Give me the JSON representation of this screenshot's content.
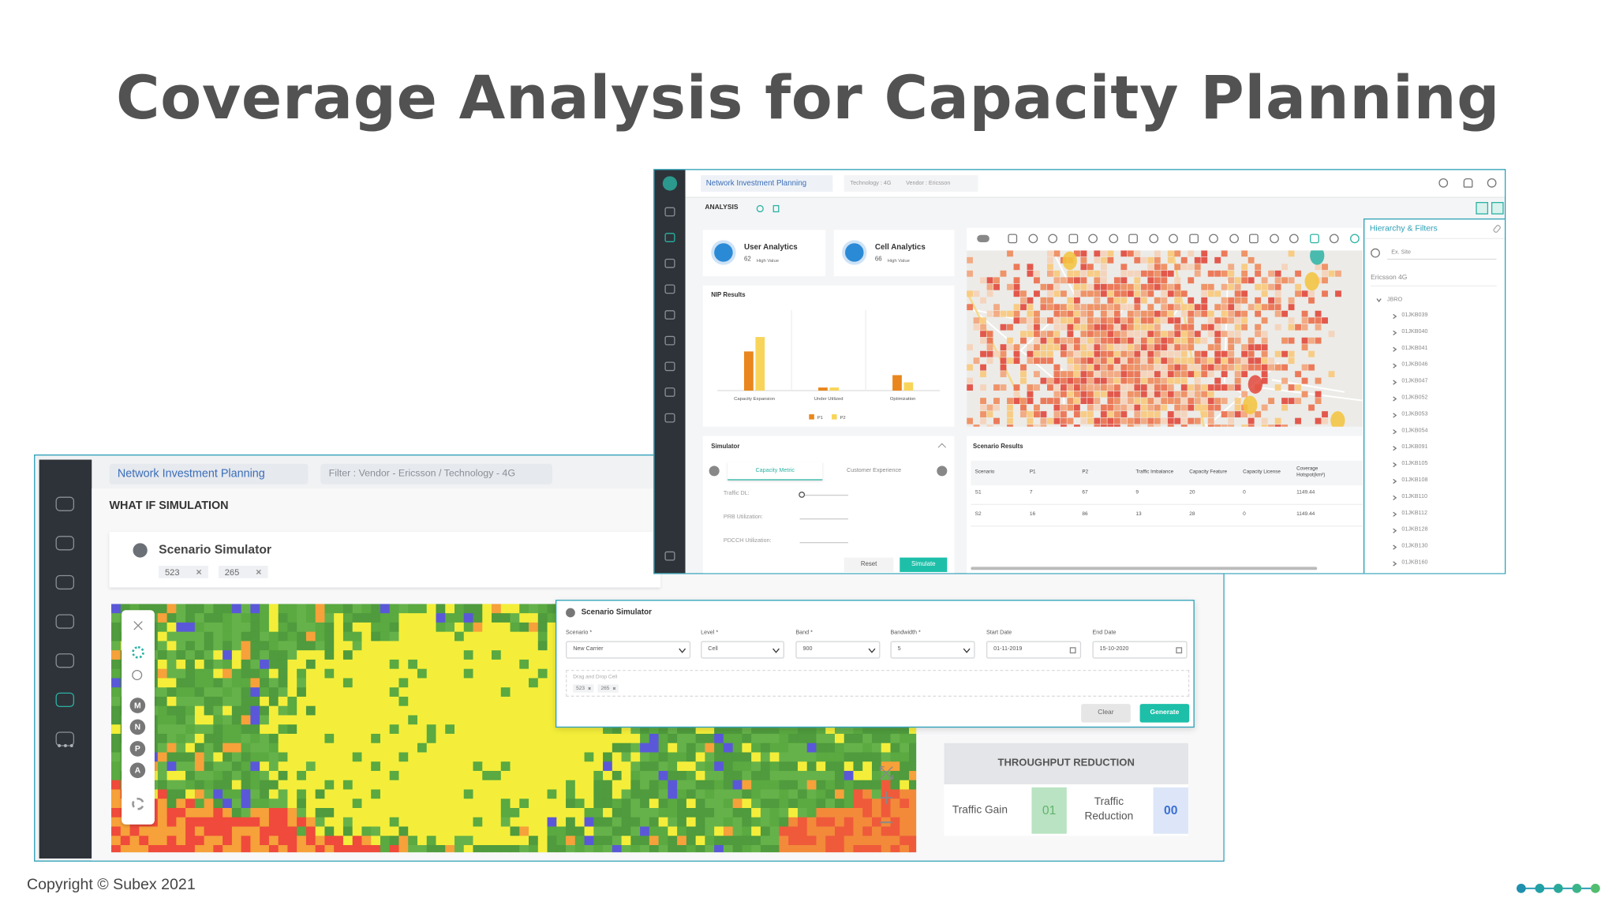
{
  "title": "Coverage Analysis for Capacity Planning",
  "copyright": "Copyright © Subex 2021",
  "back_screen": {
    "app_title": "Network Investment Planning",
    "filter": "Filter : Vendor - Ericsson / Technology - 4G",
    "section": "WHAT IF SIMULATION",
    "simulator_title": "Scenario Simulator",
    "chips": [
      "523",
      "265"
    ],
    "map_tools": [
      "M",
      "N",
      "P",
      "A"
    ],
    "throughput": {
      "title": "THROUGHPUT REDUCTION",
      "traffic_gain": "Traffic Gain",
      "traffic_gain_value": "01",
      "traffic_reduction": "Traffic Reduction",
      "traffic_reduction_value": "00"
    }
  },
  "dialog": {
    "title": "Scenario Simulator",
    "fields": [
      {
        "label": "Scenario *",
        "value": "New Carrier"
      },
      {
        "label": "Level *",
        "value": "Cell"
      },
      {
        "label": "Band *",
        "value": "900"
      },
      {
        "label": "Bandwidth *",
        "value": "5"
      },
      {
        "label": "Start Date",
        "value": "01-11-2019"
      },
      {
        "label": "End Date",
        "value": "15-10-2020"
      }
    ],
    "drop_label": "Drag and Drop Cell",
    "chips": [
      "523",
      "265"
    ],
    "buttons": [
      "Clear",
      "Generate"
    ]
  },
  "front_screen": {
    "app_title": "Network Investment Planning",
    "tech_filter": {
      "technology": "Technology : 4G",
      "vendor": "Vendor : Ericsson"
    },
    "section": "ANALYSIS",
    "cards": [
      {
        "title": "User Analytics",
        "value": "62",
        "note": "High Value"
      },
      {
        "title": "Cell Analytics",
        "value": "66",
        "note": "High Value"
      }
    ],
    "nip": {
      "title": "NIP Results",
      "chart_data": {
        "type": "bar",
        "categories": [
          "Capacity Expansion",
          "Under Utilized",
          "Optimization"
        ],
        "series": [
          {
            "name": "P1",
            "color": "#e9861d",
            "values": [
              38,
              3,
              15
            ]
          },
          {
            "name": "P2",
            "color": "#f8d55a",
            "values": [
              52,
              3,
              8
            ]
          }
        ]
      }
    },
    "simulator": {
      "title": "Simulator",
      "tabs": [
        "Capacity Metric",
        "Customer Experience"
      ],
      "metrics": [
        "Traffic DL:",
        "PRB Utilization:",
        "PDCCH Utilization:"
      ],
      "buttons": [
        "Reset",
        "Simulate"
      ]
    },
    "results": {
      "title": "Scenario Results",
      "headers": [
        "Scenario",
        "P1",
        "P2",
        "Traffic Imbalance",
        "Capacity Feature",
        "Capacity License",
        "Coverage Hotspot(km²)"
      ],
      "rows": [
        [
          "S1",
          "7",
          "67",
          "9",
          "20",
          "0",
          "1149.44"
        ],
        [
          "S2",
          "16",
          "86",
          "13",
          "28",
          "0",
          "1149.44"
        ]
      ]
    },
    "hierarchy": {
      "title": "Hierarchy & Filters",
      "search": "Ex. Site",
      "tech": "Ericsson 4G",
      "region": "JBRO",
      "sites": [
        "01JKB039",
        "01JKB040",
        "01JKB041",
        "01JKB046",
        "01JKB047",
        "01JKB052",
        "01JKB053",
        "01JKB054",
        "01JKB091",
        "01JKB105",
        "01JKB108",
        "01JKB110",
        "01JKB112",
        "01JKB128",
        "01JKB130",
        "01JKB160"
      ]
    }
  }
}
